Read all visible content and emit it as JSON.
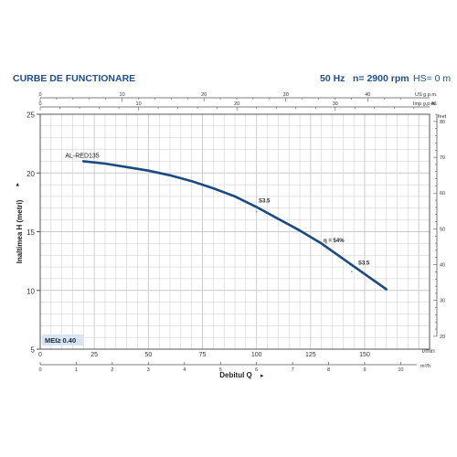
{
  "header": {
    "title": "CURBE DE FUNCTIONARE",
    "freq": "50 Hz",
    "speed": "n= 2900 rpm",
    "hs": "HS= 0 m"
  },
  "colors": {
    "curve": "#1a4a80",
    "accent_text": "#1f4e8c",
    "grid": "#c9c9c9",
    "axis": "#555555",
    "label_box": "#d9e4ef"
  },
  "chart_data": {
    "type": "line",
    "title": "CURBE DE FUNCTIONARE",
    "xlabel": "Debitul Q",
    "ylabel": "Inaltimea  H (metri)",
    "xlim": [
      0,
      180
    ],
    "ylim": [
      5,
      25
    ],
    "x_ticks": [
      0,
      25,
      50,
      75,
      100,
      125,
      150
    ],
    "x_unit": "l/min",
    "y_ticks": [
      5,
      10,
      15,
      20,
      25
    ],
    "grid": true,
    "series": [
      {
        "name": "AL-RED135",
        "x": [
          20,
          30,
          40,
          50,
          60,
          70,
          80,
          90,
          100,
          110,
          120,
          130,
          140,
          150,
          160
        ],
        "y": [
          21.0,
          20.8,
          20.5,
          20.2,
          19.8,
          19.3,
          18.7,
          18.0,
          17.1,
          16.1,
          15.1,
          14.0,
          12.7,
          11.4,
          10.1
        ]
      }
    ],
    "annotations": [
      {
        "text": "S3.5",
        "x": 101,
        "y": 17.5
      },
      {
        "text": "η = 54%",
        "x": 131,
        "y": 14.1
      },
      {
        "text": "S3.5",
        "x": 147,
        "y": 12.2
      }
    ],
    "badge": "MEI≥ 0.40",
    "secondary_axes": {
      "m3h": {
        "label": "m³/h",
        "ticks": [
          "0",
          "1",
          "2",
          "3",
          "4",
          "5",
          "6",
          "7",
          "8",
          "9",
          "10"
        ]
      },
      "us_gpm": {
        "label": "US g.p.m.",
        "ticks": [
          "0",
          "10",
          "20",
          "30",
          "40"
        ]
      },
      "imp_gpm": {
        "label": "Imp g.p.m.",
        "ticks": [
          "0",
          "10",
          "20",
          "30",
          "40"
        ]
      },
      "feet": {
        "label": "feet",
        "ticks": [
          "20",
          "30",
          "40",
          "50",
          "60",
          "70",
          "80"
        ]
      }
    }
  }
}
